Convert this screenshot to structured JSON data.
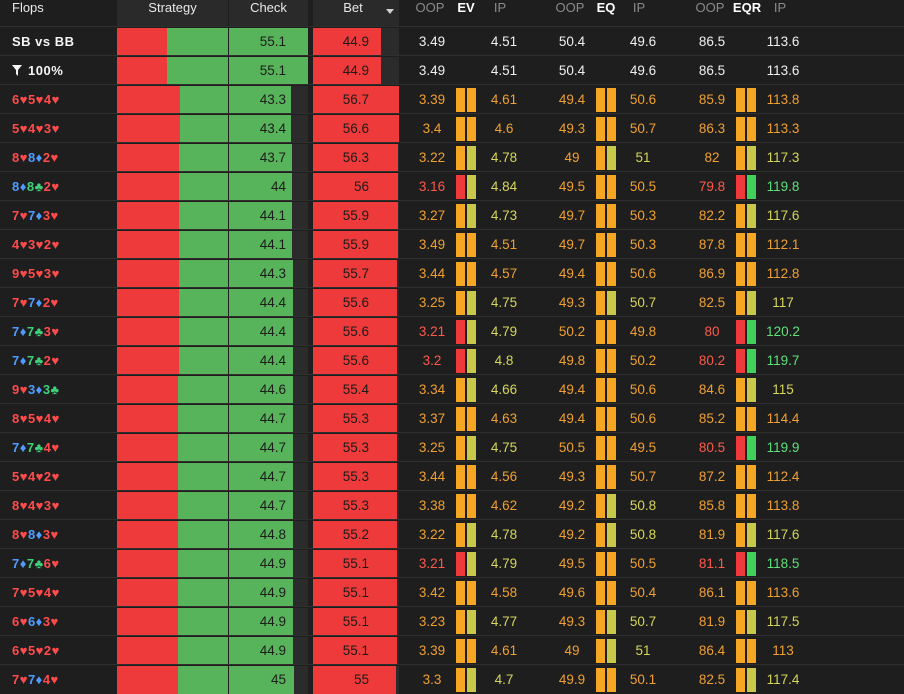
{
  "header": {
    "flops": "Flops",
    "strategy": "Strategy",
    "check": "Check",
    "bet": "Bet",
    "ev_oop": "OOP",
    "ev": "EV",
    "ev_ip": "IP",
    "eq_oop": "OOP",
    "eq": "EQ",
    "eq_ip": "IP",
    "eqr_oop": "OOP",
    "eqr": "EQR",
    "eqr_ip": "IP"
  },
  "colors": {
    "red": "#ee3a3a",
    "green": "#58b45a",
    "orange": "#f5a623",
    "olive": "#c8c84a",
    "bright_green": "#41d15a",
    "text_orange": "#f0a030",
    "text_yellow": "#d6d65a",
    "text_red": "#ff5a4a",
    "text_green": "#5ee07a",
    "text_white": "#f0f0f0"
  },
  "summary": [
    {
      "label": "SB vs BB",
      "icon": "",
      "check": "55.1",
      "bet": "44.9",
      "ev_oop": "3.49",
      "ev_ip": "4.51",
      "eq_oop": "50.4",
      "eq_ip": "49.6",
      "eqr_oop": "86.5",
      "eqr_ip": "113.6"
    },
    {
      "label": "100%",
      "icon": "filter-icon",
      "check": "55.1",
      "bet": "44.9",
      "ev_oop": "3.49",
      "ev_ip": "4.51",
      "eq_oop": "50.4",
      "eq_ip": "49.6",
      "eqr_oop": "86.5",
      "eqr_ip": "113.6"
    }
  ],
  "rows": [
    {
      "flop": [
        [
          "6♥",
          "r"
        ],
        [
          "5♥",
          "r"
        ],
        [
          "4♥",
          "r"
        ]
      ],
      "check": "43.3",
      "bet": "56.7",
      "ev_oop": "3.39",
      "ev_ip": "4.61",
      "eq_oop": "49.4",
      "eq_ip": "50.6",
      "eqr_oop": "85.9",
      "eqr_ip": "113.8",
      "ev_c": [
        "o",
        "o",
        "o",
        "o"
      ],
      "eq_c": [
        "o",
        "o",
        "o",
        "o"
      ],
      "eqr_c": [
        "o",
        "o",
        "o",
        "o"
      ]
    },
    {
      "flop": [
        [
          "5♥",
          "r"
        ],
        [
          "4♥",
          "r"
        ],
        [
          "3♥",
          "r"
        ]
      ],
      "check": "43.4",
      "bet": "56.6",
      "ev_oop": "3.4",
      "ev_ip": "4.6",
      "eq_oop": "49.3",
      "eq_ip": "50.7",
      "eqr_oop": "86.3",
      "eqr_ip": "113.3",
      "ev_c": [
        "o",
        "o",
        "o",
        "o"
      ],
      "eq_c": [
        "o",
        "o",
        "o",
        "o"
      ],
      "eqr_c": [
        "o",
        "o",
        "o",
        "o"
      ]
    },
    {
      "flop": [
        [
          "8♥",
          "r"
        ],
        [
          "8♦",
          "b"
        ],
        [
          "2♥",
          "r"
        ]
      ],
      "check": "43.7",
      "bet": "56.3",
      "ev_oop": "3.22",
      "ev_ip": "4.78",
      "eq_oop": "49",
      "eq_ip": "51",
      "eqr_oop": "82",
      "eqr_ip": "117.3",
      "ev_c": [
        "o",
        "o",
        "y",
        "y"
      ],
      "eq_c": [
        "o",
        "o",
        "y",
        "y"
      ],
      "eqr_c": [
        "o",
        "o",
        "y",
        "y"
      ]
    },
    {
      "flop": [
        [
          "8♦",
          "b"
        ],
        [
          "8♣",
          "g"
        ],
        [
          "2♥",
          "r"
        ]
      ],
      "check": "44",
      "bet": "56",
      "ev_oop": "3.16",
      "ev_ip": "4.84",
      "eq_oop": "49.5",
      "eq_ip": "50.5",
      "eqr_oop": "79.8",
      "eqr_ip": "119.8",
      "ev_c": [
        "r",
        "r",
        "y",
        "y"
      ],
      "eq_c": [
        "o",
        "o",
        "o",
        "o"
      ],
      "eqr_c": [
        "r",
        "r",
        "g",
        "g"
      ]
    },
    {
      "flop": [
        [
          "7♥",
          "r"
        ],
        [
          "7♦",
          "b"
        ],
        [
          "3♥",
          "r"
        ]
      ],
      "check": "44.1",
      "bet": "55.9",
      "ev_oop": "3.27",
      "ev_ip": "4.73",
      "eq_oop": "49.7",
      "eq_ip": "50.3",
      "eqr_oop": "82.2",
      "eqr_ip": "117.6",
      "ev_c": [
        "o",
        "o",
        "y",
        "y"
      ],
      "eq_c": [
        "o",
        "o",
        "o",
        "o"
      ],
      "eqr_c": [
        "o",
        "o",
        "y",
        "y"
      ]
    },
    {
      "flop": [
        [
          "4♥",
          "r"
        ],
        [
          "3♥",
          "r"
        ],
        [
          "2♥",
          "r"
        ]
      ],
      "check": "44.1",
      "bet": "55.9",
      "ev_oop": "3.49",
      "ev_ip": "4.51",
      "eq_oop": "49.7",
      "eq_ip": "50.3",
      "eqr_oop": "87.8",
      "eqr_ip": "112.1",
      "ev_c": [
        "o",
        "o",
        "o",
        "o"
      ],
      "eq_c": [
        "o",
        "o",
        "o",
        "o"
      ],
      "eqr_c": [
        "o",
        "o",
        "o",
        "o"
      ]
    },
    {
      "flop": [
        [
          "9♥",
          "r"
        ],
        [
          "5♥",
          "r"
        ],
        [
          "3♥",
          "r"
        ]
      ],
      "check": "44.3",
      "bet": "55.7",
      "ev_oop": "3.44",
      "ev_ip": "4.57",
      "eq_oop": "49.4",
      "eq_ip": "50.6",
      "eqr_oop": "86.9",
      "eqr_ip": "112.8",
      "ev_c": [
        "o",
        "o",
        "o",
        "o"
      ],
      "eq_c": [
        "o",
        "o",
        "o",
        "o"
      ],
      "eqr_c": [
        "o",
        "o",
        "o",
        "o"
      ]
    },
    {
      "flop": [
        [
          "7♥",
          "r"
        ],
        [
          "7♦",
          "b"
        ],
        [
          "2♥",
          "r"
        ]
      ],
      "check": "44.4",
      "bet": "55.6",
      "ev_oop": "3.25",
      "ev_ip": "4.75",
      "eq_oop": "49.3",
      "eq_ip": "50.7",
      "eqr_oop": "82.5",
      "eqr_ip": "117",
      "ev_c": [
        "o",
        "o",
        "y",
        "y"
      ],
      "eq_c": [
        "o",
        "o",
        "y",
        "y"
      ],
      "eqr_c": [
        "o",
        "o",
        "y",
        "y"
      ]
    },
    {
      "flop": [
        [
          "7♦",
          "b"
        ],
        [
          "7♣",
          "g"
        ],
        [
          "3♥",
          "r"
        ]
      ],
      "check": "44.4",
      "bet": "55.6",
      "ev_oop": "3.21",
      "ev_ip": "4.79",
      "eq_oop": "50.2",
      "eq_ip": "49.8",
      "eqr_oop": "80",
      "eqr_ip": "120.2",
      "ev_c": [
        "r",
        "r",
        "y",
        "y"
      ],
      "eq_c": [
        "o",
        "o",
        "o",
        "o"
      ],
      "eqr_c": [
        "r",
        "r",
        "g",
        "g"
      ]
    },
    {
      "flop": [
        [
          "7♦",
          "b"
        ],
        [
          "7♣",
          "g"
        ],
        [
          "2♥",
          "r"
        ]
      ],
      "check": "44.4",
      "bet": "55.6",
      "ev_oop": "3.2",
      "ev_ip": "4.8",
      "eq_oop": "49.8",
      "eq_ip": "50.2",
      "eqr_oop": "80.2",
      "eqr_ip": "119.7",
      "ev_c": [
        "r",
        "r",
        "y",
        "y"
      ],
      "eq_c": [
        "o",
        "o",
        "o",
        "o"
      ],
      "eqr_c": [
        "r",
        "r",
        "g",
        "g"
      ]
    },
    {
      "flop": [
        [
          "9♥",
          "r"
        ],
        [
          "3♦",
          "b"
        ],
        [
          "3♣",
          "g"
        ]
      ],
      "check": "44.6",
      "bet": "55.4",
      "ev_oop": "3.34",
      "ev_ip": "4.66",
      "eq_oop": "49.4",
      "eq_ip": "50.6",
      "eqr_oop": "84.6",
      "eqr_ip": "115",
      "ev_c": [
        "o",
        "o",
        "y",
        "y"
      ],
      "eq_c": [
        "o",
        "o",
        "o",
        "o"
      ],
      "eqr_c": [
        "o",
        "o",
        "y",
        "y"
      ]
    },
    {
      "flop": [
        [
          "8♥",
          "r"
        ],
        [
          "5♥",
          "r"
        ],
        [
          "4♥",
          "r"
        ]
      ],
      "check": "44.7",
      "bet": "55.3",
      "ev_oop": "3.37",
      "ev_ip": "4.63",
      "eq_oop": "49.4",
      "eq_ip": "50.6",
      "eqr_oop": "85.2",
      "eqr_ip": "114.4",
      "ev_c": [
        "o",
        "o",
        "o",
        "o"
      ],
      "eq_c": [
        "o",
        "o",
        "o",
        "o"
      ],
      "eqr_c": [
        "o",
        "o",
        "o",
        "o"
      ]
    },
    {
      "flop": [
        [
          "7♦",
          "b"
        ],
        [
          "7♣",
          "g"
        ],
        [
          "4♥",
          "r"
        ]
      ],
      "check": "44.7",
      "bet": "55.3",
      "ev_oop": "3.25",
      "ev_ip": "4.75",
      "eq_oop": "50.5",
      "eq_ip": "49.5",
      "eqr_oop": "80.5",
      "eqr_ip": "119.9",
      "ev_c": [
        "o",
        "o",
        "y",
        "y"
      ],
      "eq_c": [
        "o",
        "o",
        "o",
        "o"
      ],
      "eqr_c": [
        "r",
        "r",
        "g",
        "g"
      ]
    },
    {
      "flop": [
        [
          "5♥",
          "r"
        ],
        [
          "4♥",
          "r"
        ],
        [
          "2♥",
          "r"
        ]
      ],
      "check": "44.7",
      "bet": "55.3",
      "ev_oop": "3.44",
      "ev_ip": "4.56",
      "eq_oop": "49.3",
      "eq_ip": "50.7",
      "eqr_oop": "87.2",
      "eqr_ip": "112.4",
      "ev_c": [
        "o",
        "o",
        "o",
        "o"
      ],
      "eq_c": [
        "o",
        "o",
        "o",
        "o"
      ],
      "eqr_c": [
        "o",
        "o",
        "o",
        "o"
      ]
    },
    {
      "flop": [
        [
          "8♥",
          "r"
        ],
        [
          "4♥",
          "r"
        ],
        [
          "3♥",
          "r"
        ]
      ],
      "check": "44.7",
      "bet": "55.3",
      "ev_oop": "3.38",
      "ev_ip": "4.62",
      "eq_oop": "49.2",
      "eq_ip": "50.8",
      "eqr_oop": "85.8",
      "eqr_ip": "113.8",
      "ev_c": [
        "o",
        "o",
        "o",
        "o"
      ],
      "eq_c": [
        "o",
        "o",
        "y",
        "y"
      ],
      "eqr_c": [
        "o",
        "o",
        "o",
        "o"
      ]
    },
    {
      "flop": [
        [
          "8♥",
          "r"
        ],
        [
          "8♦",
          "b"
        ],
        [
          "3♥",
          "r"
        ]
      ],
      "check": "44.8",
      "bet": "55.2",
      "ev_oop": "3.22",
      "ev_ip": "4.78",
      "eq_oop": "49.2",
      "eq_ip": "50.8",
      "eqr_oop": "81.9",
      "eqr_ip": "117.6",
      "ev_c": [
        "o",
        "o",
        "y",
        "y"
      ],
      "eq_c": [
        "o",
        "o",
        "y",
        "y"
      ],
      "eqr_c": [
        "o",
        "o",
        "y",
        "y"
      ]
    },
    {
      "flop": [
        [
          "7♦",
          "b"
        ],
        [
          "7♣",
          "g"
        ],
        [
          "6♥",
          "r"
        ]
      ],
      "check": "44.9",
      "bet": "55.1",
      "ev_oop": "3.21",
      "ev_ip": "4.79",
      "eq_oop": "49.5",
      "eq_ip": "50.5",
      "eqr_oop": "81.1",
      "eqr_ip": "118.5",
      "ev_c": [
        "r",
        "r",
        "y",
        "y"
      ],
      "eq_c": [
        "o",
        "o",
        "o",
        "o"
      ],
      "eqr_c": [
        "r",
        "r",
        "g",
        "g"
      ]
    },
    {
      "flop": [
        [
          "7♥",
          "r"
        ],
        [
          "5♥",
          "r"
        ],
        [
          "4♥",
          "r"
        ]
      ],
      "check": "44.9",
      "bet": "55.1",
      "ev_oop": "3.42",
      "ev_ip": "4.58",
      "eq_oop": "49.6",
      "eq_ip": "50.4",
      "eqr_oop": "86.1",
      "eqr_ip": "113.6",
      "ev_c": [
        "o",
        "o",
        "o",
        "o"
      ],
      "eq_c": [
        "o",
        "o",
        "o",
        "o"
      ],
      "eqr_c": [
        "o",
        "o",
        "o",
        "o"
      ]
    },
    {
      "flop": [
        [
          "6♥",
          "r"
        ],
        [
          "6♦",
          "b"
        ],
        [
          "3♥",
          "r"
        ]
      ],
      "check": "44.9",
      "bet": "55.1",
      "ev_oop": "3.23",
      "ev_ip": "4.77",
      "eq_oop": "49.3",
      "eq_ip": "50.7",
      "eqr_oop": "81.9",
      "eqr_ip": "117.5",
      "ev_c": [
        "o",
        "o",
        "y",
        "y"
      ],
      "eq_c": [
        "o",
        "o",
        "y",
        "y"
      ],
      "eqr_c": [
        "o",
        "o",
        "y",
        "y"
      ]
    },
    {
      "flop": [
        [
          "6♥",
          "r"
        ],
        [
          "5♥",
          "r"
        ],
        [
          "2♥",
          "r"
        ]
      ],
      "check": "44.9",
      "bet": "55.1",
      "ev_oop": "3.39",
      "ev_ip": "4.61",
      "eq_oop": "49",
      "eq_ip": "51",
      "eqr_oop": "86.4",
      "eqr_ip": "113",
      "ev_c": [
        "o",
        "o",
        "o",
        "o"
      ],
      "eq_c": [
        "o",
        "o",
        "y",
        "y"
      ],
      "eqr_c": [
        "o",
        "o",
        "o",
        "o"
      ]
    },
    {
      "flop": [
        [
          "7♥",
          "r"
        ],
        [
          "7♦",
          "b"
        ],
        [
          "4♥",
          "r"
        ]
      ],
      "check": "45",
      "bet": "55",
      "ev_oop": "3.3",
      "ev_ip": "4.7",
      "eq_oop": "49.9",
      "eq_ip": "50.1",
      "eqr_oop": "82.5",
      "eqr_ip": "117.4",
      "ev_c": [
        "o",
        "o",
        "y",
        "y"
      ],
      "eq_c": [
        "o",
        "o",
        "o",
        "o"
      ],
      "eqr_c": [
        "o",
        "o",
        "y",
        "y"
      ]
    }
  ]
}
